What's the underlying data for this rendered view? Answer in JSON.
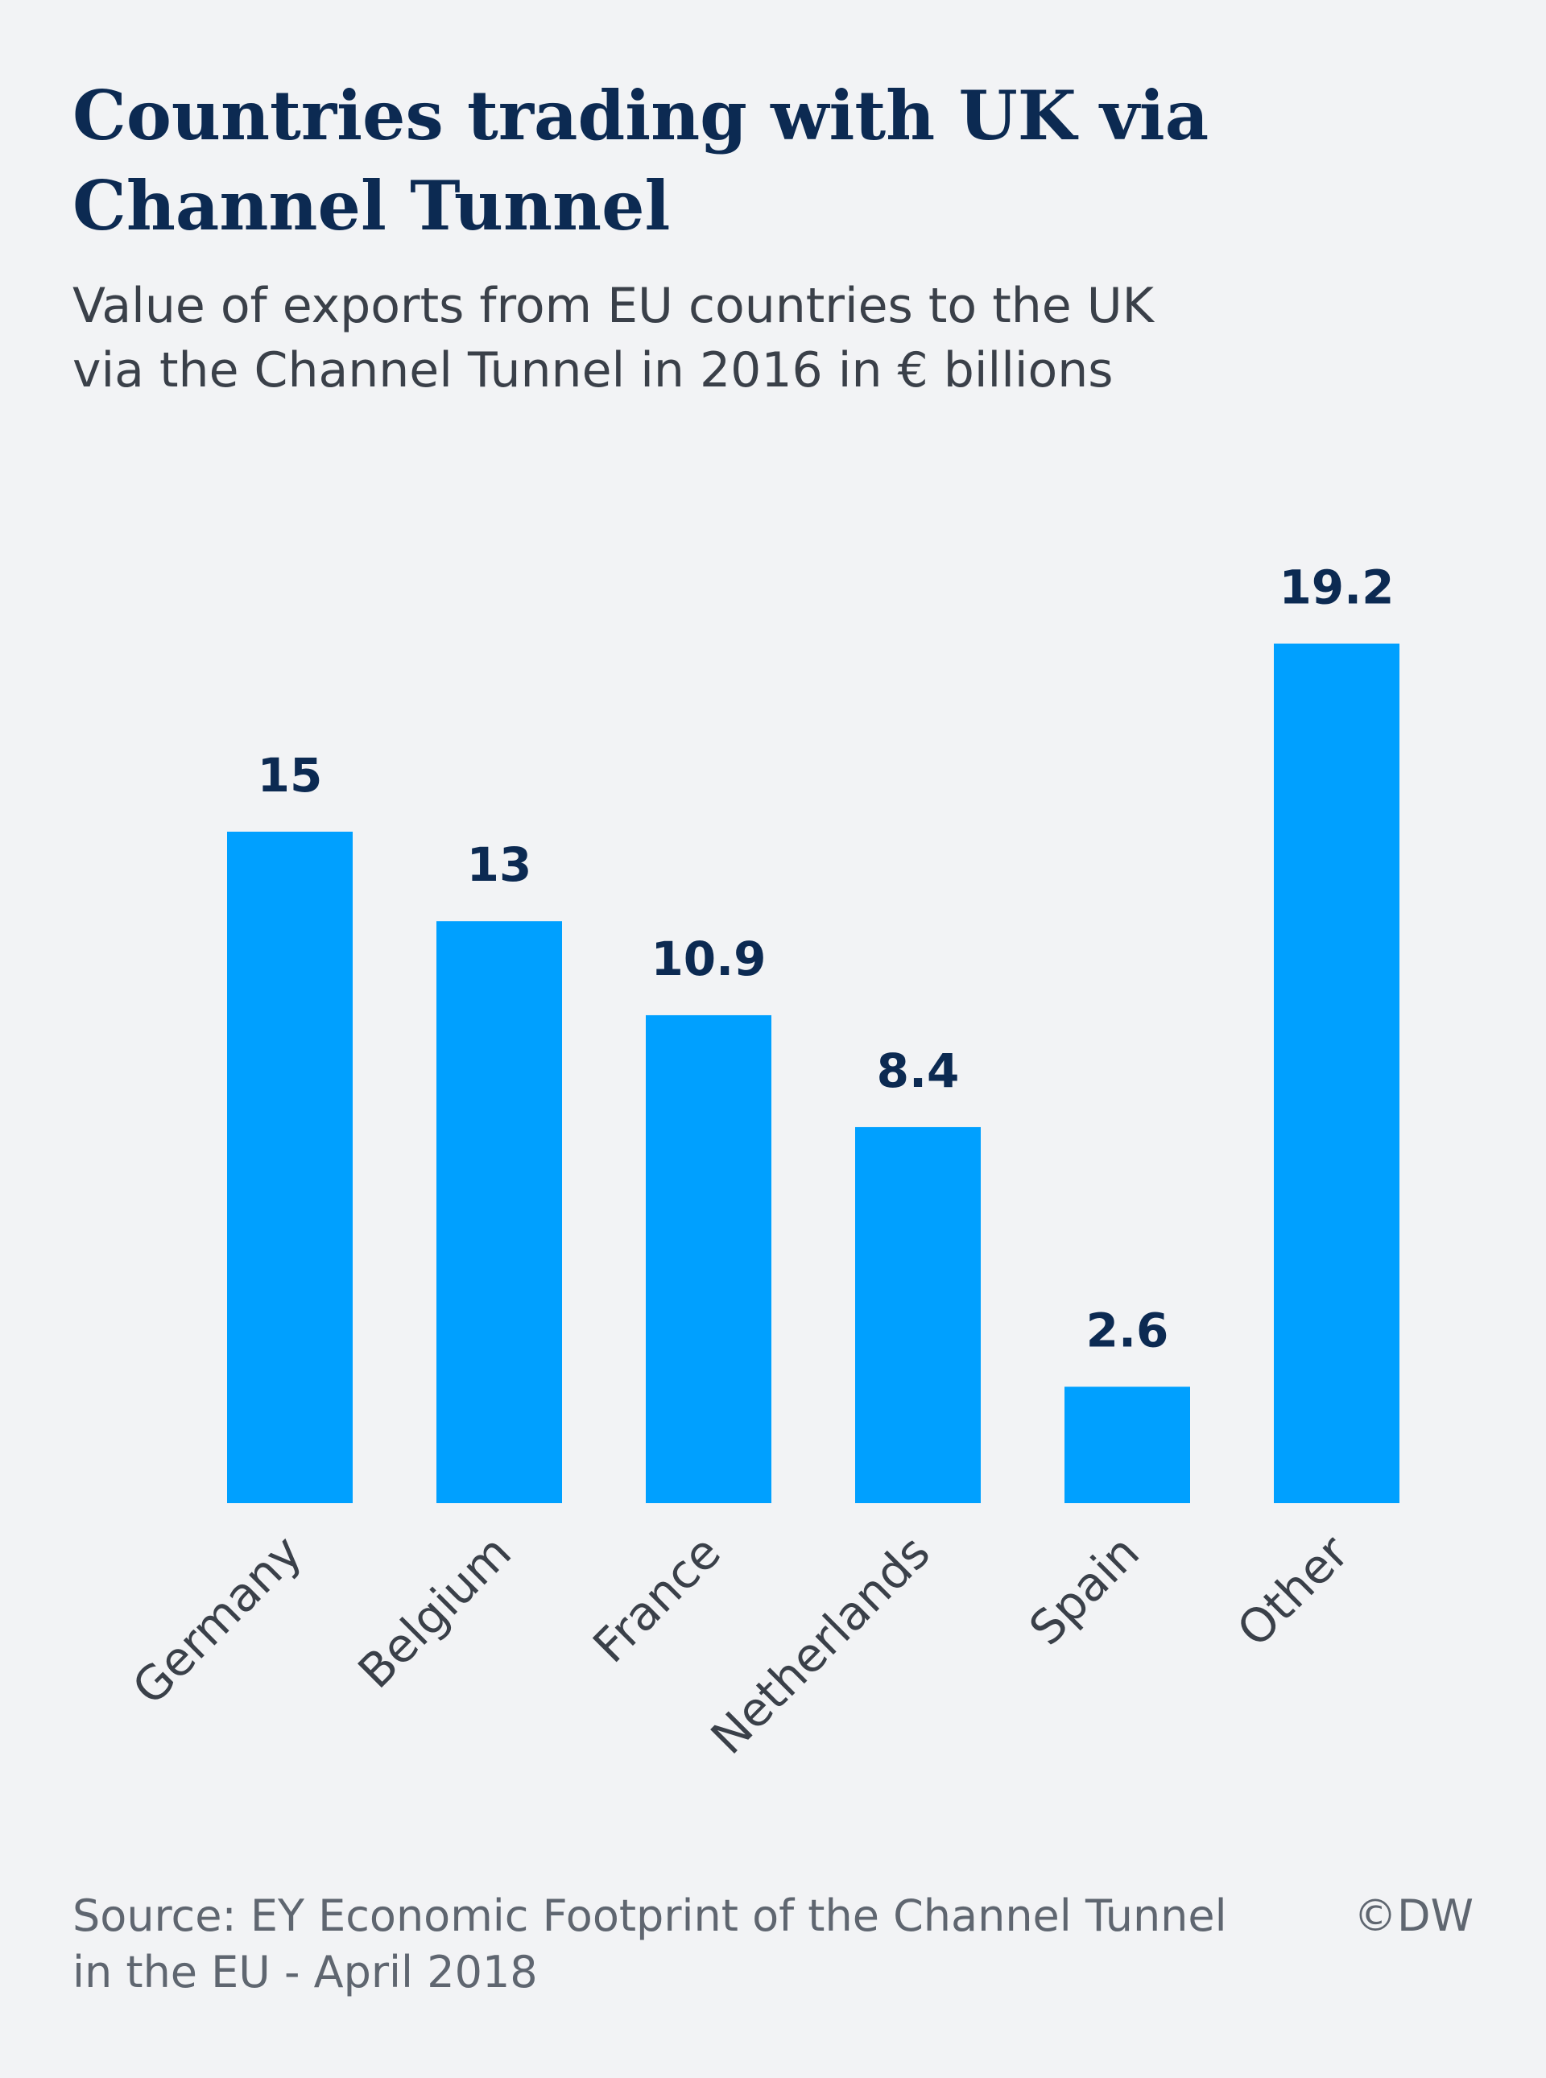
{
  "header": {
    "title_lines": [
      "Countries trading with UK via",
      "Channel Tunnel"
    ],
    "subtitle_lines": [
      "Value of exports from EU countries to the UK",
      "via the Channel Tunnel in 2016 in € billions"
    ]
  },
  "chart_data": {
    "type": "bar",
    "title": "Countries trading with UK via Channel Tunnel",
    "subtitle": "Value of exports from EU countries to the UK via the Channel Tunnel in 2016 in € billions",
    "categories": [
      "Germany",
      "Belgium",
      "France",
      "Netherlands",
      "Spain",
      "Other"
    ],
    "values": [
      15,
      13,
      10.9,
      8.4,
      2.6,
      19.2
    ],
    "value_labels": [
      "15",
      "13",
      "10.9",
      "8.4",
      "2.6",
      "19.2"
    ],
    "xlabel": "",
    "ylabel": "",
    "ylim": [
      0,
      19.2
    ],
    "grid": false,
    "legend": "none",
    "bar_color": "#00a0ff",
    "label_color": "#0c2a52",
    "category_label_rotation": "-45deg"
  },
  "footer": {
    "source_lines": [
      "Source: EY Economic Footprint of the Channel Tunnel",
      "in the EU - April 2018"
    ],
    "credit": "©DW"
  },
  "colors": {
    "background": "#f2f3f5",
    "title": "#0c2a52",
    "subtitle": "#3a4049",
    "footer": "#5f6670",
    "bar": "#00a0ff"
  }
}
